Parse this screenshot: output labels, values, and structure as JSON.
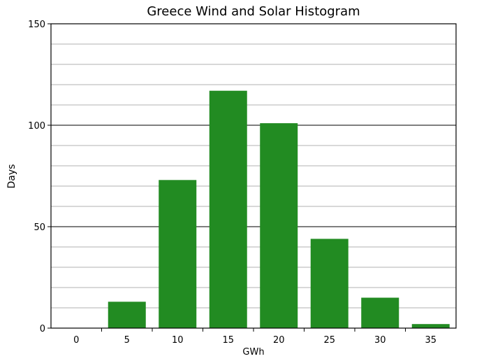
{
  "chart_data": {
    "type": "bar",
    "title": "Greece Wind and Solar Histogram",
    "xlabel": "GWh",
    "ylabel": "Days",
    "categories": [
      "0",
      "5",
      "10",
      "15",
      "20",
      "25",
      "30",
      "35"
    ],
    "values": [
      0,
      13,
      73,
      117,
      101,
      44,
      15,
      2
    ],
    "ylim": [
      0,
      150
    ],
    "yticks": [
      "0",
      "50",
      "100",
      "150"
    ],
    "grid": true,
    "bar_color": "#228b22"
  }
}
